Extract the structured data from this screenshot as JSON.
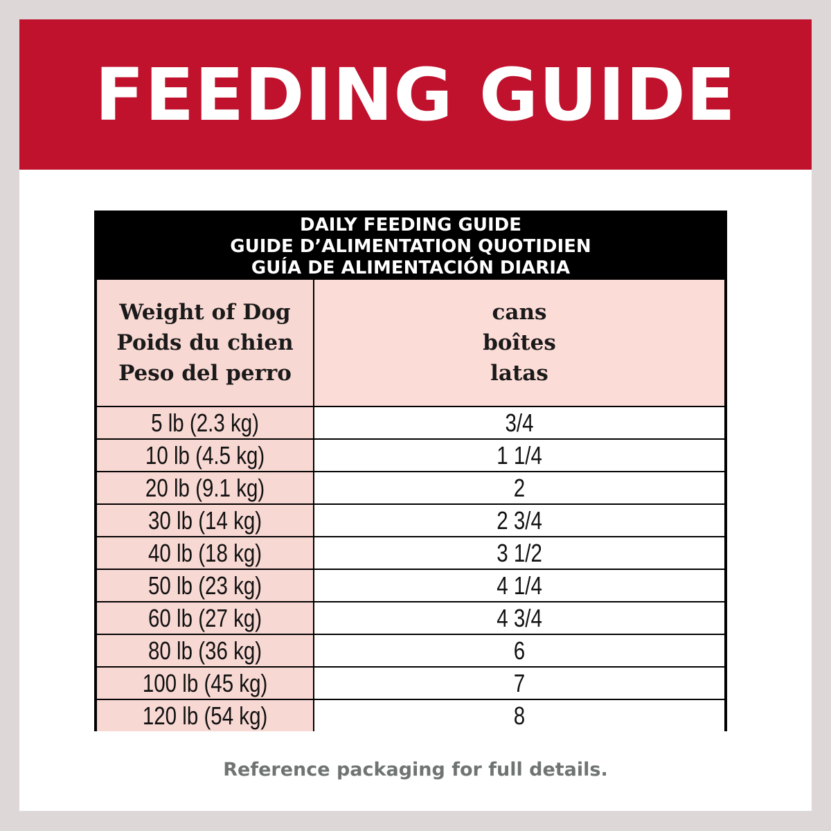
{
  "banner": {
    "title": "FEEDING GUIDE",
    "color": "#c0112d"
  },
  "table": {
    "title_lines": [
      "DAILY FEEDING GUIDE",
      "GUIDE D’ALIMENTATION QUOTIDIEN",
      "GUÍA DE ALIMENTACIÓN DIARIA"
    ],
    "weight_header": [
      "Weight of Dog",
      "Poids du chien",
      "Peso del perro"
    ],
    "cans_header": [
      "cans",
      "boîtes",
      "latas"
    ],
    "rows": [
      {
        "weight": "5 lb (2.3 kg)",
        "cans": "3/4"
      },
      {
        "weight": "10 lb (4.5 kg)",
        "cans": "1 1/4"
      },
      {
        "weight": "20 lb (9.1 kg)",
        "cans": "2"
      },
      {
        "weight": "30 lb (14 kg)",
        "cans": "2 3/4"
      },
      {
        "weight": "40 lb (18 kg)",
        "cans": "3 1/2"
      },
      {
        "weight": "50 lb (23 kg)",
        "cans": "4 1/4"
      },
      {
        "weight": "60 lb (27 kg)",
        "cans": "4 3/4"
      },
      {
        "weight": "80 lb (36 kg)",
        "cans": "6"
      },
      {
        "weight": "100 lb (45 kg)",
        "cans": "7"
      },
      {
        "weight": "120 lb (54 kg)",
        "cans": "8"
      }
    ],
    "header_bg": "#000000",
    "pink_bg": "#f8d8d3"
  },
  "footnote": "Reference packaging for full details."
}
